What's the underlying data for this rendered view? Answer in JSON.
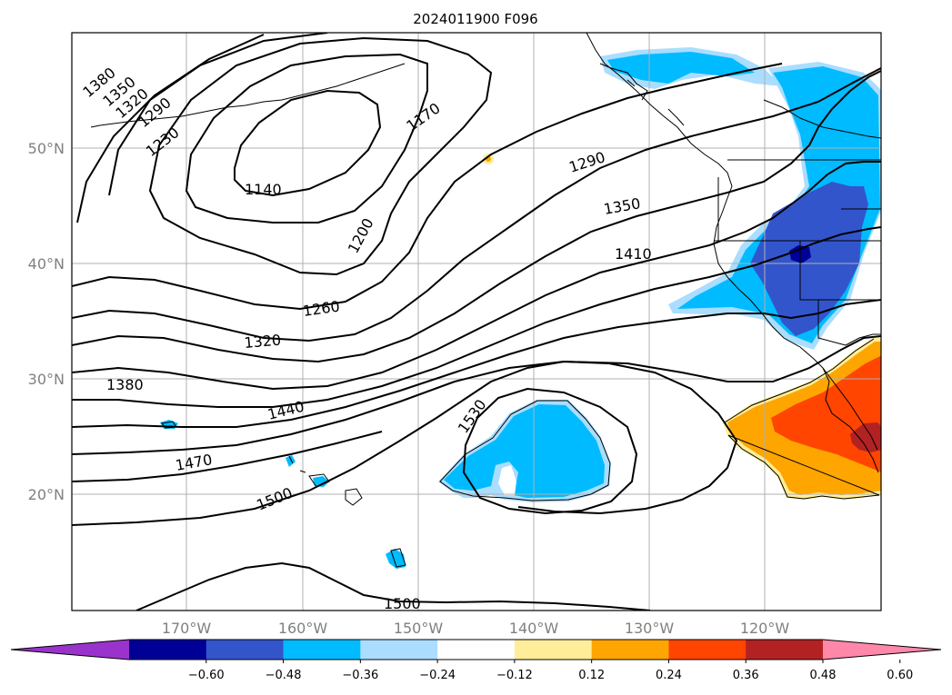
{
  "title": "2024011900 F096",
  "lat_labels": [
    "50°N",
    "40°N",
    "30°N",
    "20°N"
  ],
  "lon_labels": [
    "170°W",
    "160°W",
    "150°W",
    "140°W",
    "130°W",
    "120°W"
  ],
  "contour_labels": [
    "1380",
    "1350",
    "1320",
    "1290",
    "1230",
    "1140",
    "1170",
    "1200",
    "1290",
    "1350",
    "1410",
    "1260",
    "1320",
    "1380",
    "1440",
    "1470",
    "1530",
    "1500",
    "1500"
  ],
  "colorbar": {
    "labels": [
      "−0.60",
      "−0.48",
      "−0.36",
      "−0.24",
      "−0.12",
      "0.12",
      "0.24",
      "0.36",
      "0.48",
      "0.60"
    ],
    "colors": [
      "#9a33cc",
      "#000096",
      "#3355cc",
      "#00bbff",
      "#aaddff",
      "#ffffff",
      "#ffee99",
      "#ffa500",
      "#ff4500",
      "#b22222",
      "#ff88aa"
    ]
  },
  "colors": {
    "blue_light": "#aaddff",
    "blue": "#00bbff",
    "blue_dark": "#3355cc",
    "navy": "#000096",
    "yellow": "#ffee99",
    "orange": "#ffa500",
    "red_orange": "#ff4500",
    "dark_red": "#b22222"
  }
}
